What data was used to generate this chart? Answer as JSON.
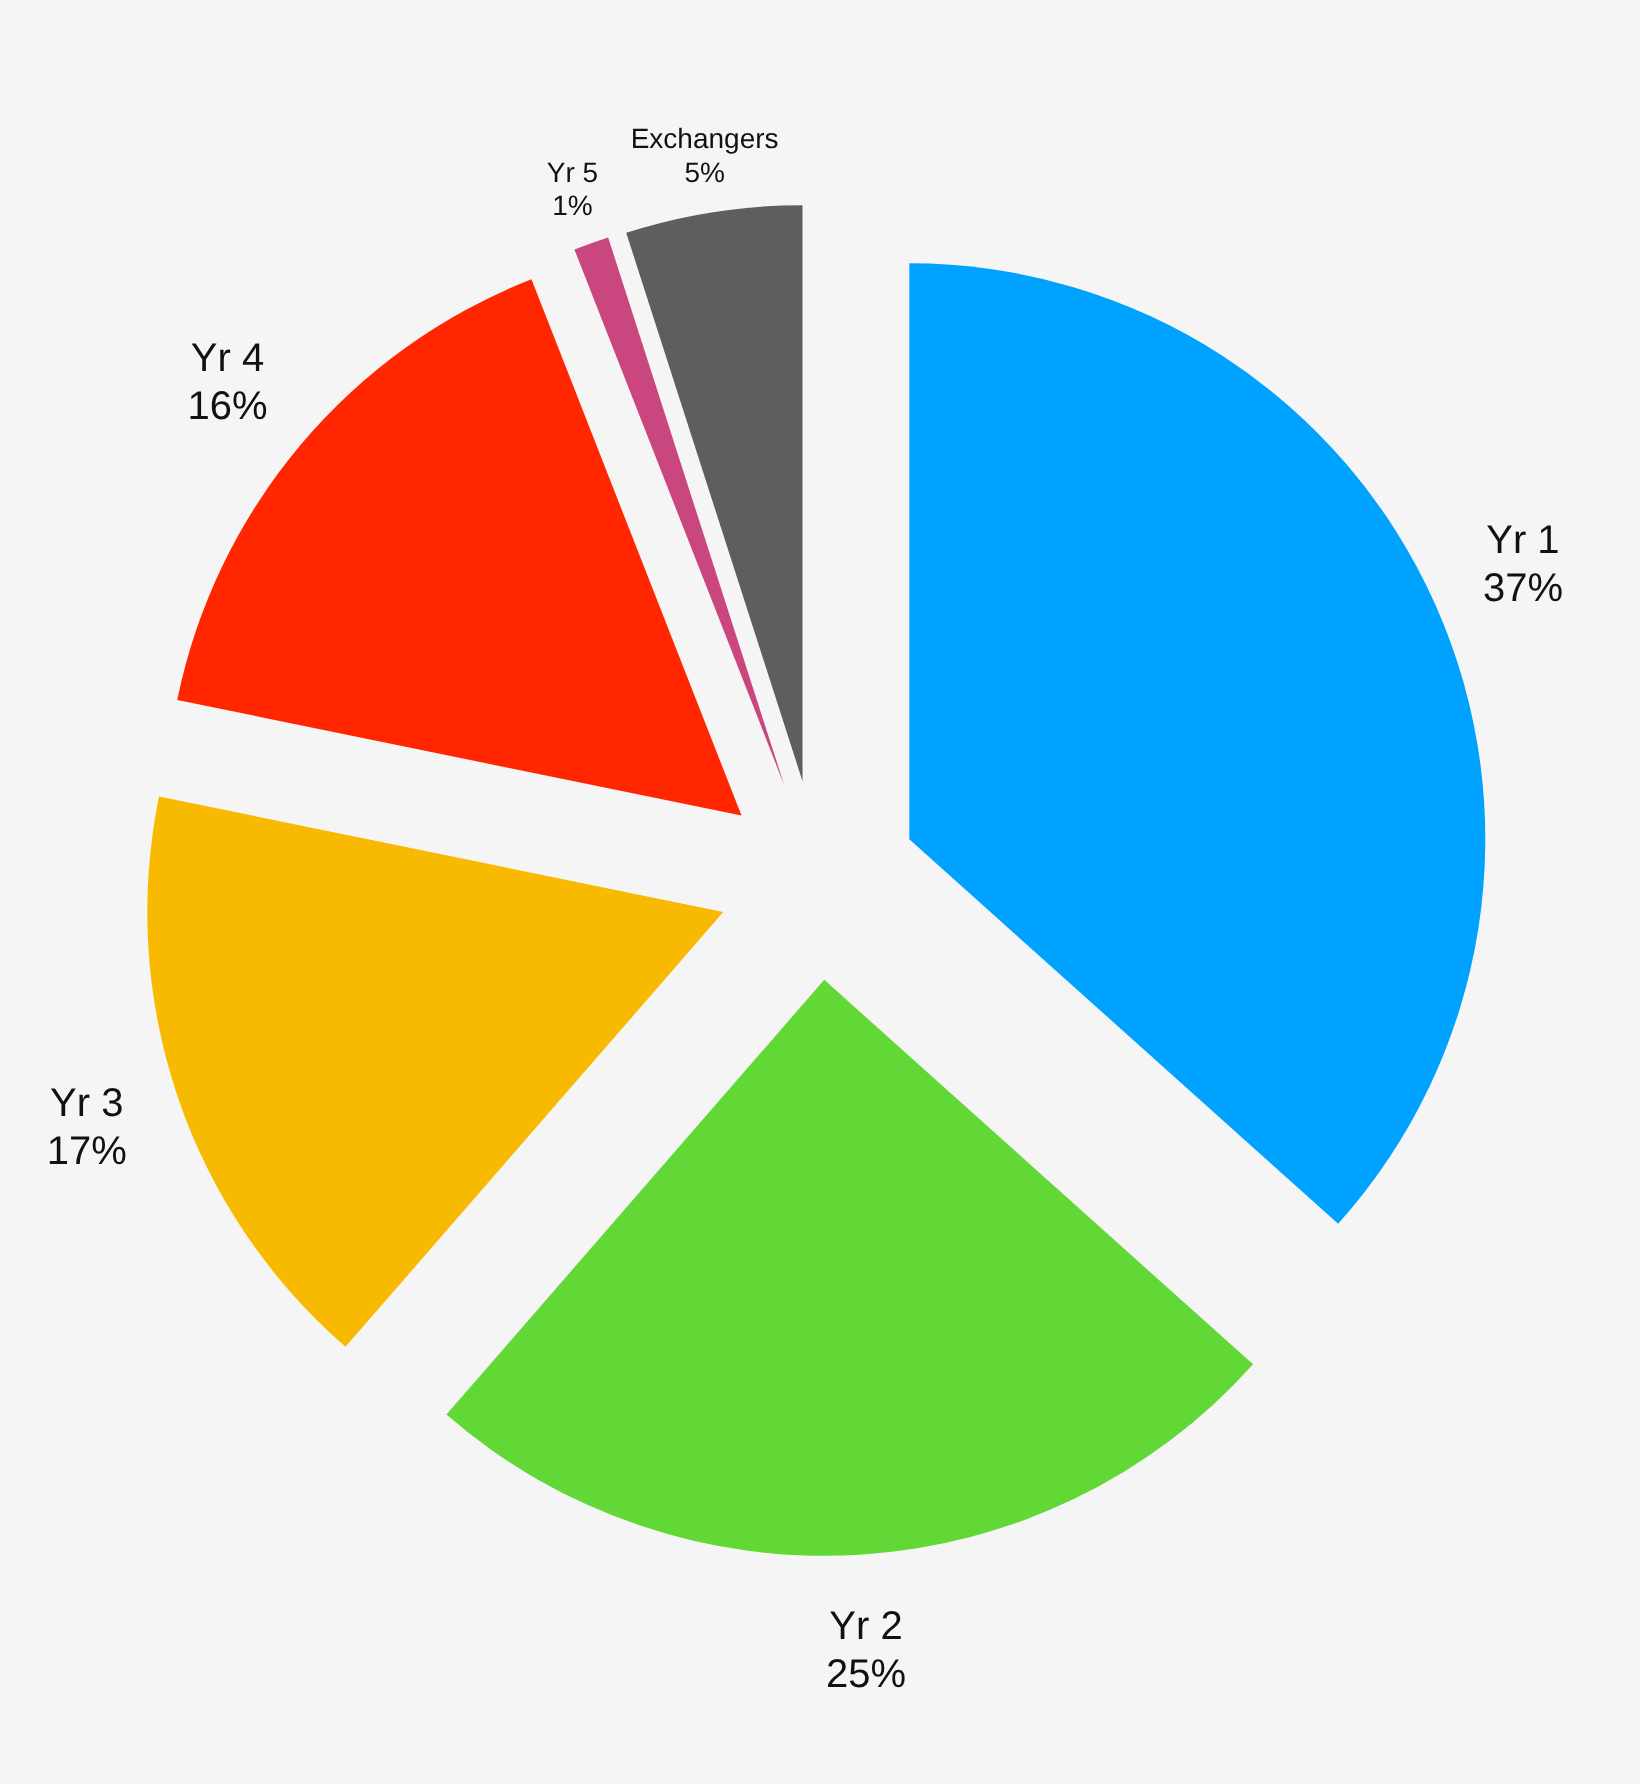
{
  "chart_data": {
    "type": "pie",
    "categories": [
      "Yr 1",
      "Yr 2",
      "Yr 3",
      "Yr 4",
      "Yr 5",
      "Exchangers"
    ],
    "values": [
      37,
      25,
      17,
      16,
      1,
      5
    ],
    "colors": [
      "#00a2ff",
      "#61d836",
      "#f8ba00",
      "#ff2600",
      "#c9467f",
      "#5e5e5e"
    ],
    "value_labels": [
      "37%",
      "25%",
      "17%",
      "16%",
      "1%",
      "5%"
    ]
  }
}
